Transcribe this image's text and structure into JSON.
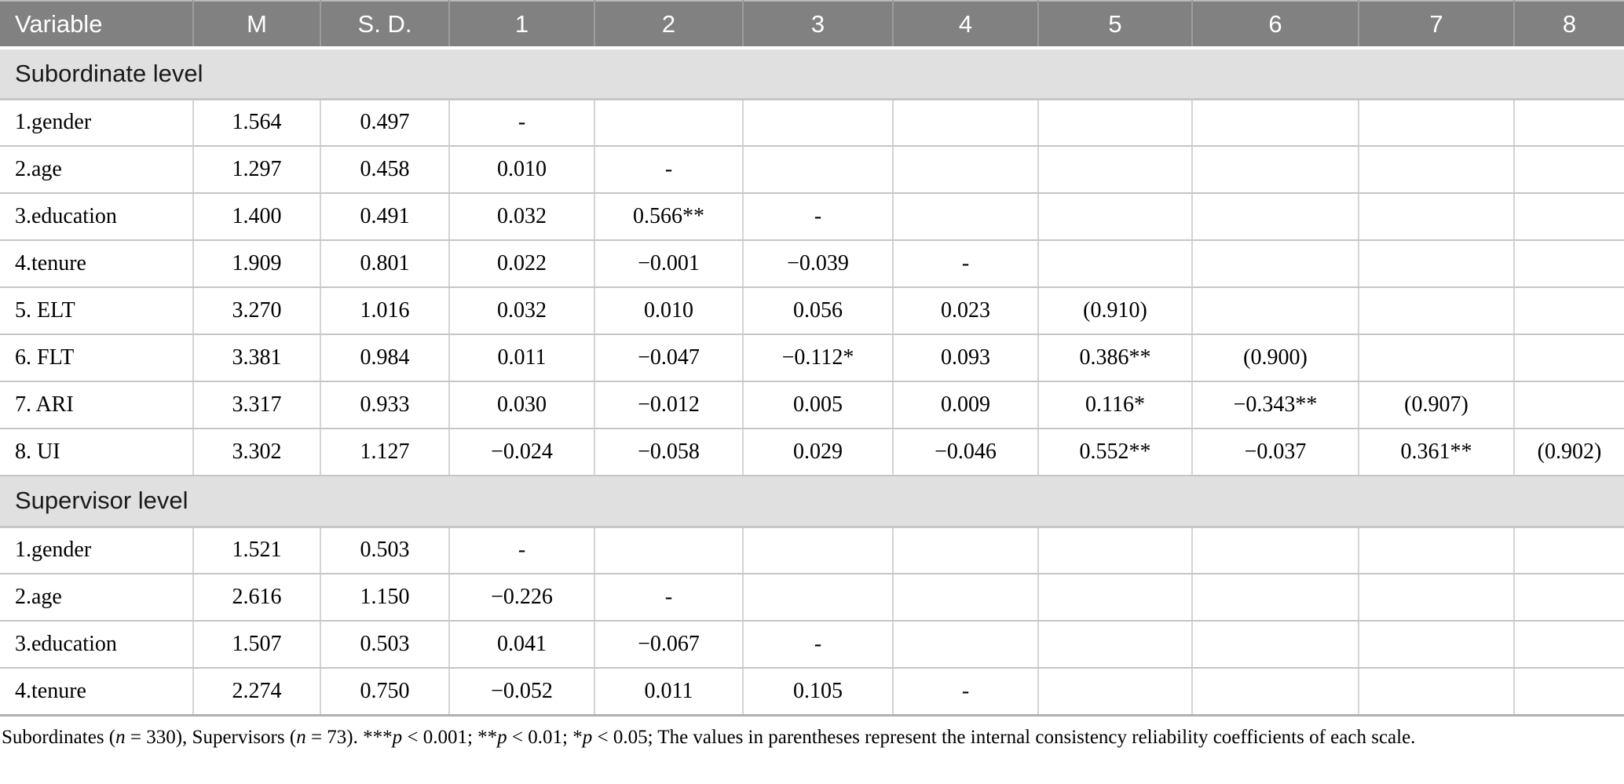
{
  "colors": {
    "header_bg": "#818181",
    "header_text": "#ffffff",
    "section_bg": "#e0e0e0",
    "grid_vertical": "#d4d4d4",
    "grid_horizontal": "#c6c6c6",
    "table_bottom_border": "#b0b0b0",
    "text": "#000000"
  },
  "table": {
    "columns": [
      "Variable",
      "M",
      "S. D.",
      "1",
      "2",
      "3",
      "4",
      "5",
      "6",
      "7",
      "8"
    ],
    "sections": [
      {
        "label": "Subordinate level",
        "rows": [
          [
            "1.gender",
            "1.564",
            "0.497",
            "-",
            "",
            "",
            "",
            "",
            "",
            "",
            ""
          ],
          [
            "2.age",
            "1.297",
            "0.458",
            "0.010",
            "-",
            "",
            "",
            "",
            "",
            "",
            ""
          ],
          [
            "3.education",
            "1.400",
            "0.491",
            "0.032",
            "0.566**",
            "-",
            "",
            "",
            "",
            "",
            ""
          ],
          [
            "4.tenure",
            "1.909",
            "0.801",
            "0.022",
            "−0.001",
            "−0.039",
            "-",
            "",
            "",
            "",
            ""
          ],
          [
            "5. ELT",
            "3.270",
            "1.016",
            "0.032",
            "0.010",
            "0.056",
            "0.023",
            "(0.910)",
            "",
            "",
            ""
          ],
          [
            "6. FLT",
            "3.381",
            "0.984",
            "0.011",
            "−0.047",
            "−0.112*",
            "0.093",
            "0.386**",
            "(0.900)",
            "",
            ""
          ],
          [
            "7. ARI",
            "3.317",
            "0.933",
            "0.030",
            "−0.012",
            "0.005",
            "0.009",
            "0.116*",
            "−0.343**",
            "(0.907)",
            ""
          ],
          [
            "8. UI",
            "3.302",
            "1.127",
            "−0.024",
            "−0.058",
            "0.029",
            "−0.046",
            "0.552**",
            "−0.037",
            "0.361**",
            "(0.902)"
          ]
        ]
      },
      {
        "label": "Supervisor level",
        "rows": [
          [
            "1.gender",
            "1.521",
            "0.503",
            "-",
            "",
            "",
            "",
            "",
            "",
            "",
            ""
          ],
          [
            "2.age",
            "2.616",
            "1.150",
            "−0.226",
            "-",
            "",
            "",
            "",
            "",
            "",
            ""
          ],
          [
            "3.education",
            "1.507",
            "0.503",
            "0.041",
            "−0.067",
            "-",
            "",
            "",
            "",
            "",
            ""
          ],
          [
            "4.tenure",
            "2.274",
            "0.750",
            "−0.052",
            "0.011",
            "0.105",
            "-",
            "",
            "",
            "",
            ""
          ]
        ]
      }
    ]
  },
  "footnote": {
    "segments": [
      {
        "text": "Subordinates (",
        "italic": false
      },
      {
        "text": "n",
        "italic": true
      },
      {
        "text": " = 330), Supervisors (",
        "italic": false
      },
      {
        "text": "n",
        "italic": true
      },
      {
        "text": " = 73). ***",
        "italic": false
      },
      {
        "text": "p",
        "italic": true
      },
      {
        "text": " < 0.001; **",
        "italic": false
      },
      {
        "text": "p",
        "italic": true
      },
      {
        "text": " < 0.01; *",
        "italic": false
      },
      {
        "text": "p",
        "italic": true
      },
      {
        "text": " < 0.05; The values in parentheses represent the internal consistency reliability coefficients of each scale.",
        "italic": false
      }
    ]
  }
}
